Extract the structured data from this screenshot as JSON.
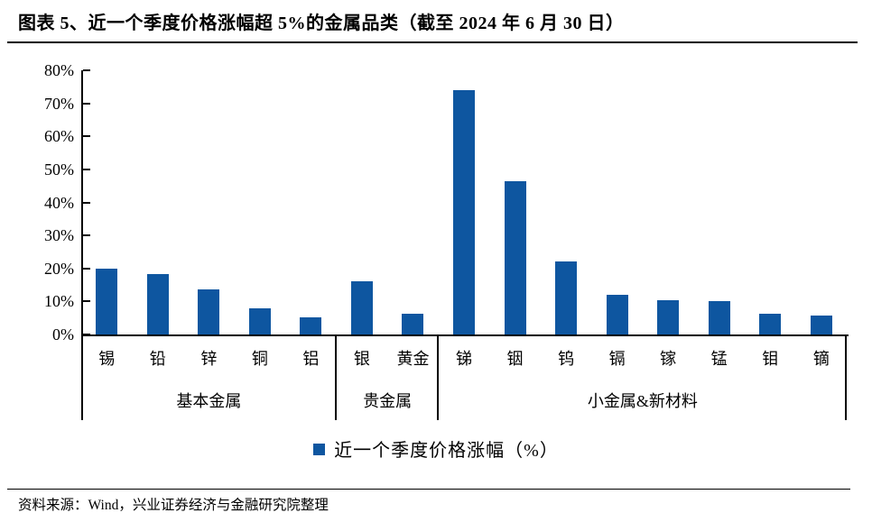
{
  "header": {
    "title": "图表 5、近一个季度价格涨幅超 5%的金属品类（截至 2024 年 6 月 30 日）"
  },
  "footer": {
    "source": "资料来源：Wind，兴业证券经济与金融研究院整理"
  },
  "colors": {
    "bar": "#0E56A0",
    "axis": "#000000",
    "text": "#000000"
  },
  "legend": {
    "swatch_icon": "blue-square-swatch",
    "label": "近一个季度价格涨幅（%）"
  },
  "chart_data": {
    "type": "bar",
    "title": "近一个季度价格涨幅超 5%的金属品类（截至 2024 年 6 月 30 日）",
    "categories": [
      "锡",
      "铅",
      "锌",
      "铜",
      "铝",
      "银",
      "黄金",
      "锑",
      "铟",
      "钨",
      "镉",
      "镓",
      "锰",
      "钼",
      "镝"
    ],
    "values": [
      20.0,
      18.4,
      13.6,
      7.8,
      5.1,
      16.2,
      6.2,
      74.0,
      46.3,
      22.2,
      12.0,
      10.5,
      10.0,
      6.2,
      5.7
    ],
    "groups": [
      {
        "label": "基本金属",
        "count": 5
      },
      {
        "label": "贵金属",
        "count": 2
      },
      {
        "label": "小金属&新材料",
        "count": 8
      }
    ],
    "xlabel": "",
    "ylabel": "",
    "ylim": [
      0,
      80
    ],
    "yticks": [
      0,
      10,
      20,
      30,
      40,
      50,
      60,
      70,
      80
    ],
    "ytick_suffix": "%",
    "grid": false,
    "legend": [
      "近一个季度价格涨幅（%）"
    ],
    "legend_position": "bottom",
    "bar_color": "#0E56A0"
  }
}
